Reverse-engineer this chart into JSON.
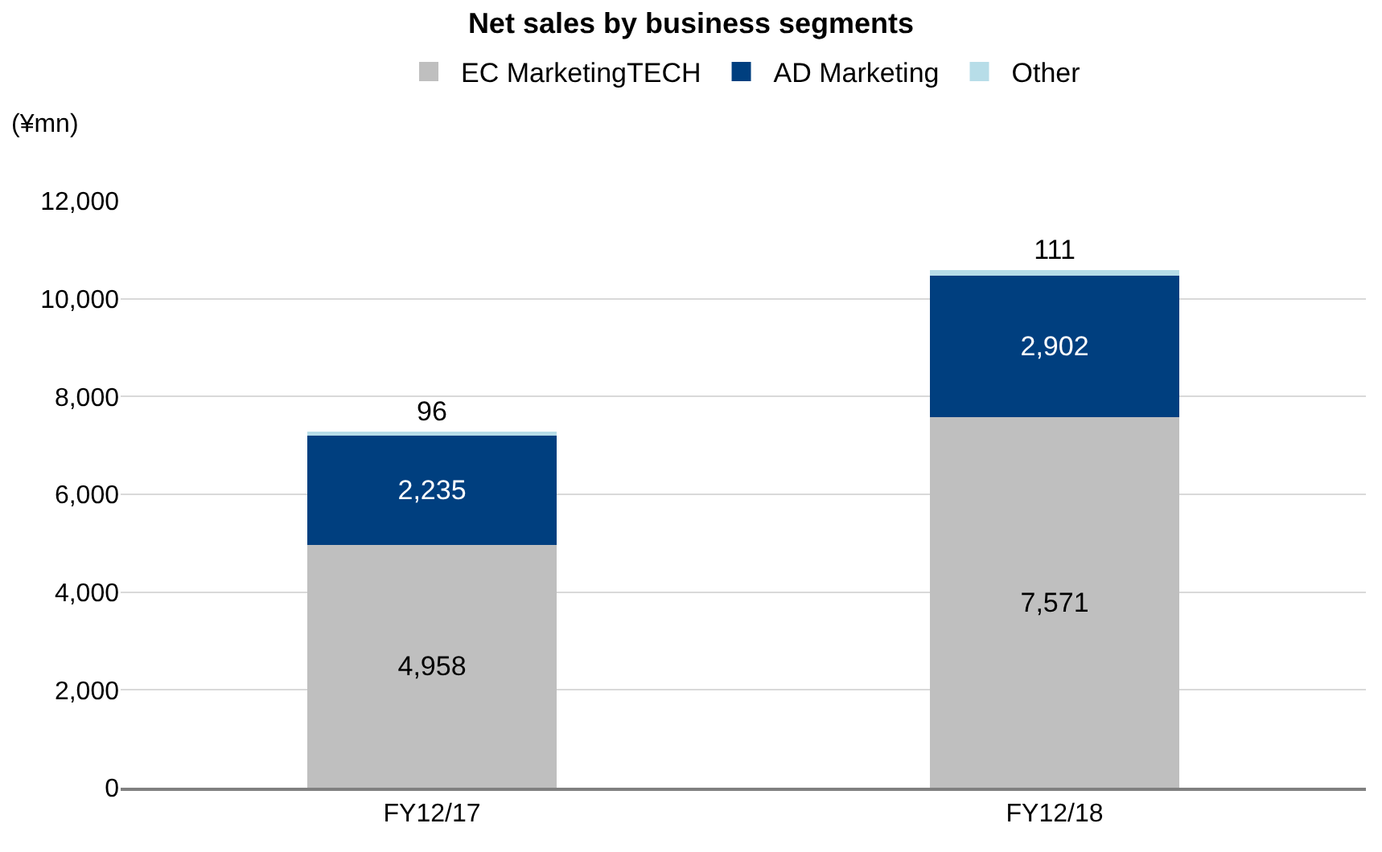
{
  "chart_data": {
    "type": "bar",
    "title": "Net sales by business segments",
    "ylabel": "(¥mn)",
    "categories": [
      "FY12/17",
      "FY12/18"
    ],
    "series": [
      {
        "name": "EC MarketingTECH",
        "color": "#bfbfbf",
        "values": [
          4958,
          7571
        ],
        "value_labels": [
          "4,958",
          "7,571"
        ]
      },
      {
        "name": "AD Marketing",
        "color": "#003f7f",
        "values": [
          2235,
          2902
        ],
        "value_labels": [
          "2,235",
          "2,902"
        ]
      },
      {
        "name": "Other",
        "color": "#b7dde8",
        "values": [
          96,
          111
        ],
        "value_labels": [
          "96",
          "111"
        ]
      }
    ],
    "stacked": true,
    "ylim": [
      0,
      12000
    ],
    "yticks": [
      {
        "value": 0,
        "label": "0"
      },
      {
        "value": 2000,
        "label": "2,000"
      },
      {
        "value": 4000,
        "label": "4,000"
      },
      {
        "value": 6000,
        "label": "6,000"
      },
      {
        "value": 8000,
        "label": "8,000"
      },
      {
        "value": 10000,
        "label": "10,000"
      },
      {
        "value": 12000,
        "label": "12,000"
      }
    ],
    "grid": "y",
    "legend": "top"
  }
}
